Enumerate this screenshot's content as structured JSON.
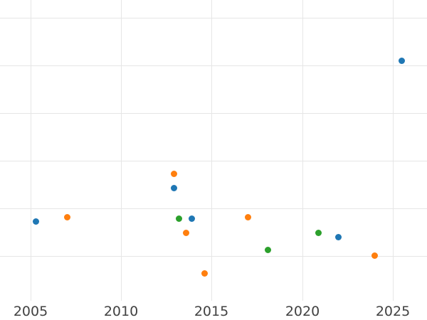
{
  "chart_data": {
    "type": "scatter",
    "title": "",
    "xlabel": "",
    "ylabel": "",
    "x_ticks": [
      2005,
      2010,
      2015,
      2020,
      2025
    ],
    "x_range": [
      2003.3,
      2026.9
    ],
    "y_range": [
      -0.94,
      5.37
    ],
    "y_gridlines": [
      0,
      1,
      2,
      3,
      4,
      5
    ],
    "y_tick_labels_visible": false,
    "grid": true,
    "legend_position": "none",
    "marker_diameter_px": 9,
    "colors": {
      "background": "#ffffff",
      "grid": "#e6e6e6",
      "tick_label": "#414141",
      "blue": "#1f77b4",
      "orange": "#ff7f0e",
      "green": "#2ca02c"
    },
    "series": [
      {
        "name": "blue",
        "color": "#1f77b4",
        "points": [
          [
            2005.3,
            0.72
          ],
          [
            2012.9,
            1.43
          ],
          [
            2013.9,
            0.78
          ],
          [
            2022.0,
            0.39
          ],
          [
            2025.5,
            4.1
          ]
        ]
      },
      {
        "name": "orange",
        "color": "#ff7f0e",
        "points": [
          [
            2007.0,
            0.82
          ],
          [
            2012.9,
            1.72
          ],
          [
            2013.6,
            0.49
          ],
          [
            2014.6,
            -0.37
          ],
          [
            2017.0,
            0.82
          ],
          [
            2024.0,
            0.01
          ]
        ]
      },
      {
        "name": "green",
        "color": "#2ca02c",
        "points": [
          [
            2013.2,
            0.79
          ],
          [
            2018.1,
            0.13
          ],
          [
            2020.9,
            0.48
          ]
        ]
      }
    ]
  }
}
